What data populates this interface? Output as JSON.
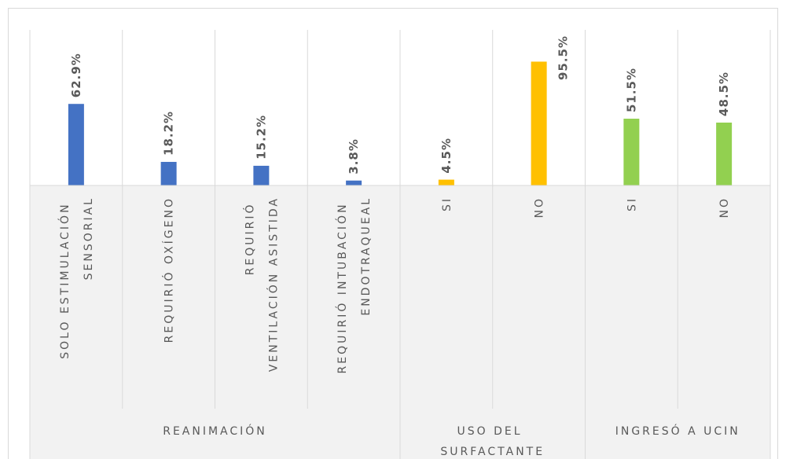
{
  "chart_data": {
    "type": "bar",
    "groups": [
      {
        "name": "REANIMACIÓN",
        "color": "#4472c4",
        "categories": [
          "SOLO ESTIMULACIÓN SENSORIAL",
          "REQUIRIÓ OXÍGENO",
          "REQUIRIÓ VENTILACIÓN ASISTIDA",
          "REQUIRIÓ INTUBACIÓN ENDOTRAQUEAL"
        ],
        "values": [
          62.9,
          18.2,
          15.2,
          3.8
        ],
        "value_labels": [
          "62.9%",
          "18.2%",
          "15.2%",
          "3.8%"
        ]
      },
      {
        "name": "USO DEL SURFACTANTE",
        "color": "#ffc000",
        "categories": [
          "SI",
          "NO"
        ],
        "values": [
          4.5,
          95.5
        ],
        "value_labels": [
          "4.5%",
          "95.5%"
        ]
      },
      {
        "name": "INGRESÓ A UCIN",
        "color": "#92d050",
        "categories": [
          "SI",
          "NO"
        ],
        "values": [
          51.5,
          48.5
        ],
        "value_labels": [
          "51.5%",
          "48.5%"
        ]
      }
    ],
    "ylim": [
      0,
      120
    ]
  }
}
